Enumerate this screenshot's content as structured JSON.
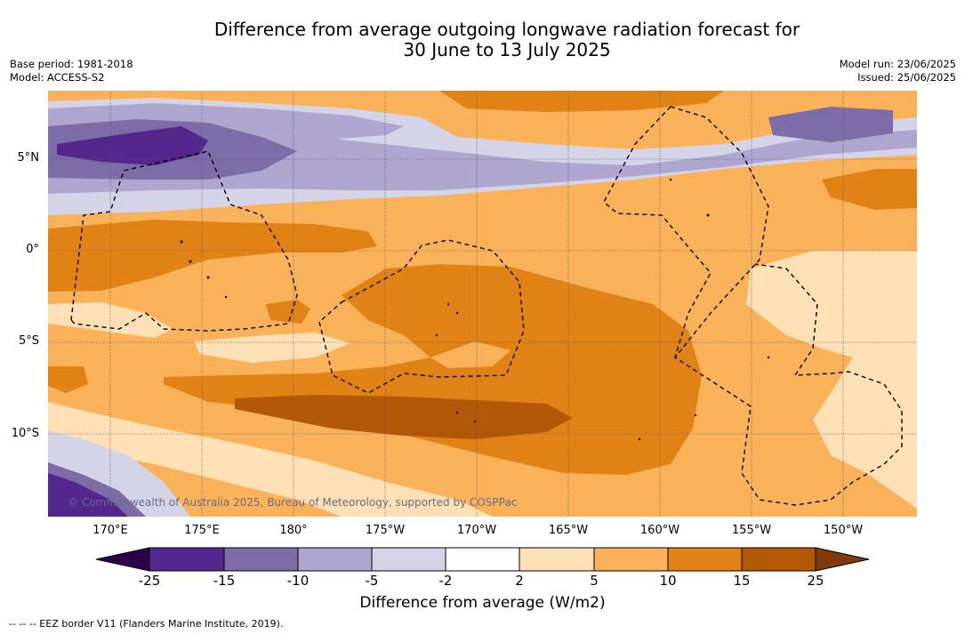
{
  "title_line1": "Difference from average outgoing longwave radiation forecast for",
  "title_line2": "30 June to 13 July 2025",
  "base_period": "Base period: 1981-2018",
  "model": "Model: ACCESS-S2",
  "model_run": "Model run: 23/06/2025",
  "issued": "Issued: 25/06/2025",
  "lat_labels": [
    "5°N",
    "0°",
    "5°S",
    "10°S"
  ],
  "lon_labels": [
    "170°E",
    "175°E",
    "180°",
    "175°W",
    "170°W",
    "165°W",
    "160°W",
    "155°W",
    "150°W"
  ],
  "copyright": "© Commonwealth of Australia 2025, Bureau of Meteorology, supported by COSPPac",
  "colorbar": {
    "ticks": [
      "-25",
      "-15",
      "-10",
      "-5",
      "-2",
      "2",
      "5",
      "10",
      "15",
      "25"
    ],
    "colors": [
      "#54278f",
      "#7e6ca9",
      "#aea6cf",
      "#d5d3e8",
      "#ffffff",
      "#fde0b5",
      "#f9b25a",
      "#e08216",
      "#b35806"
    ],
    "under_color": "#2d004b",
    "over_color": "#7f3b08",
    "title": "Difference from average (W/m2)"
  },
  "legend_eez": "-- -- -- EEZ border V11 (Flanders Marine Institute, 2019)."
}
